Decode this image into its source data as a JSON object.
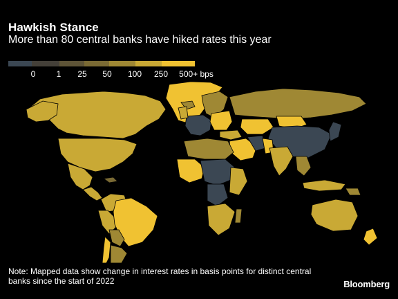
{
  "header": {
    "title": "Hawkish Stance",
    "subtitle": "More than 80 central banks have hiked rates this year"
  },
  "legend": {
    "bins": [
      {
        "label": "0",
        "color": "#3b4753"
      },
      {
        "label": "1",
        "color": "#444039"
      },
      {
        "label": "25",
        "color": "#5e5437"
      },
      {
        "label": "50",
        "color": "#7a6a34"
      },
      {
        "label": "100",
        "color": "#9f8834"
      },
      {
        "label": "250",
        "color": "#c9a935"
      },
      {
        "label": "500+ bps",
        "color": "#f0c232"
      }
    ]
  },
  "colors": {
    "background": "#000000",
    "border": "#000000"
  },
  "footer": {
    "note": "Note: Mapped data show change in interest rates in basis points for distinct central banks since the start of 2022",
    "logo": "Bloomberg"
  }
}
